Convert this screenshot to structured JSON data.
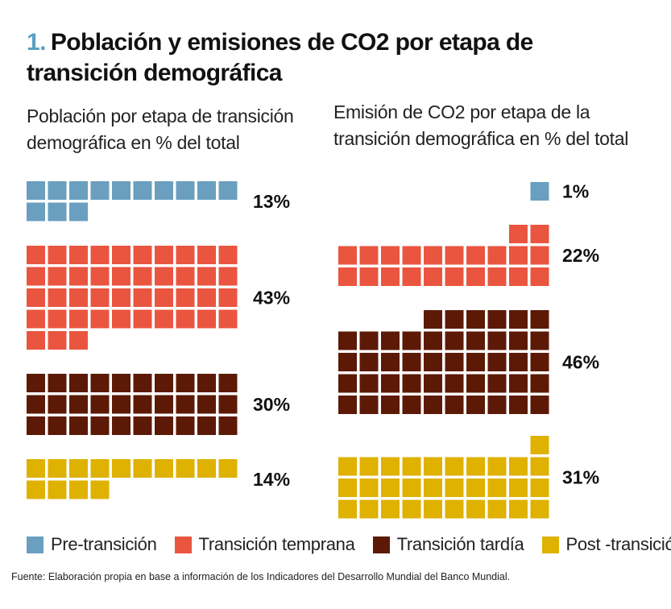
{
  "title": {
    "number": "1.",
    "text": "Población y emisiones de CO2 por etapa de transición demográfica"
  },
  "source": "Fuente: Elaboración propia en base a información de los Indicadores del Desarrollo Mundial del Banco Mundial.",
  "legend": [
    {
      "label": "Pre-transición",
      "color": "#6a9fbf"
    },
    {
      "label": "Transición temprana",
      "color": "#ea5540"
    },
    {
      "label": "Transición tardía",
      "color": "#5c1a06"
    },
    {
      "label": "Post -transición",
      "color": "#dfb100"
    }
  ],
  "chart_data": [
    {
      "type": "waffle",
      "title": "Población por etapa de transición demográfica en % del total",
      "categories": [
        "Pre-transición",
        "Transición temprana",
        "Transición tardía",
        "Post -transición"
      ],
      "values": [
        13,
        43,
        30,
        14
      ],
      "labels": [
        "13%",
        "43%",
        "30%",
        "14%"
      ],
      "colors": [
        "#6a9fbf",
        "#ea5540",
        "#5c1a06",
        "#dfb100"
      ]
    },
    {
      "type": "waffle",
      "title": "Emisión de CO2 por etapa de la transición demográfica en % del total",
      "categories": [
        "Pre-transición",
        "Transición temprana",
        "Transición tardía",
        "Post -transición"
      ],
      "values": [
        1,
        22,
        46,
        31
      ],
      "labels": [
        "1%",
        "22%",
        "46%",
        "31%"
      ],
      "colors": [
        "#6a9fbf",
        "#ea5540",
        "#5c1a06",
        "#dfb100"
      ]
    }
  ]
}
